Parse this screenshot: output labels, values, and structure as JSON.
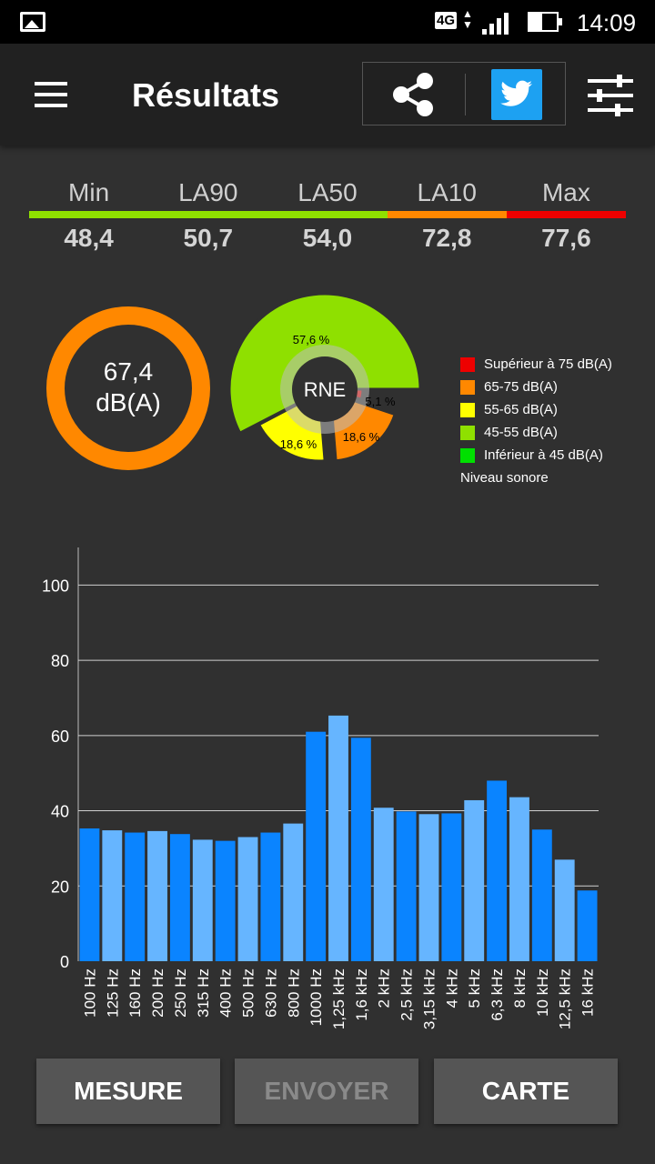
{
  "status_bar": {
    "network": "4G",
    "time": "14:09"
  },
  "toolbar": {
    "title": "Résultats"
  },
  "stats": {
    "labels": [
      "Min",
      "LA90",
      "LA50",
      "LA10",
      "Max"
    ],
    "values": [
      "48,4",
      "50,7",
      "54,0",
      "72,8",
      "77,6"
    ],
    "colors": [
      "#8fe000",
      "#ff8800",
      "#ee0000"
    ]
  },
  "gauge": {
    "value": "67,4",
    "unit": "dB(A)",
    "color": "#ff8800"
  },
  "pie": {
    "center_label": "RNE",
    "slices": [
      {
        "label": "57,6 %",
        "percent": 57.6,
        "color": "#8fe000"
      },
      {
        "label": "5,1 %",
        "percent": 5.1,
        "color": "#ee0000"
      },
      {
        "label": "18,6 %",
        "percent": 18.6,
        "color": "#ff8800"
      },
      {
        "label": "18,6 %",
        "percent": 18.6,
        "color": "#ffff00"
      }
    ]
  },
  "legend": {
    "items": [
      {
        "label": "Supérieur à 75 dB(A)",
        "color": "#ee0000"
      },
      {
        "label": "65-75 dB(A)",
        "color": "#ff8800"
      },
      {
        "label": "55-65 dB(A)",
        "color": "#ffff00"
      },
      {
        "label": "45-55 dB(A)",
        "color": "#8fe000"
      },
      {
        "label": "Inférieur à 45 dB(A)",
        "color": "#00e000"
      }
    ],
    "caption": "Niveau sonore"
  },
  "chart_data": {
    "type": "bar",
    "categories": [
      "100 Hz",
      "125 Hz",
      "160 Hz",
      "200 Hz",
      "250 Hz",
      "315 Hz",
      "400 Hz",
      "500 Hz",
      "630 Hz",
      "800 Hz",
      "1000 Hz",
      "1,25 kHz",
      "1,6 kHz",
      "2 kHz",
      "2,5 kHz",
      "3,15 kHz",
      "4 kHz",
      "5 kHz",
      "6,3 kHz",
      "8 kHz",
      "10 kHz",
      "12,5 kHz",
      "16 kHz"
    ],
    "values": [
      35.3,
      34.8,
      34.2,
      34.6,
      33.8,
      32.3,
      32.0,
      33.0,
      34.2,
      36.6,
      61.0,
      65.3,
      59.4,
      40.8,
      39.8,
      39.1,
      39.3,
      42.8,
      48.0,
      43.6,
      35.0,
      27.0,
      18.8
    ],
    "bar_colors": [
      "#0a84ff",
      "#66b5ff"
    ],
    "yticks": [
      0,
      20,
      40,
      60,
      80,
      100
    ],
    "ylim": [
      0,
      110
    ],
    "grid": true
  },
  "buttons": {
    "mesure": "MESURE",
    "envoyer": "ENVOYER",
    "carte": "CARTE"
  }
}
